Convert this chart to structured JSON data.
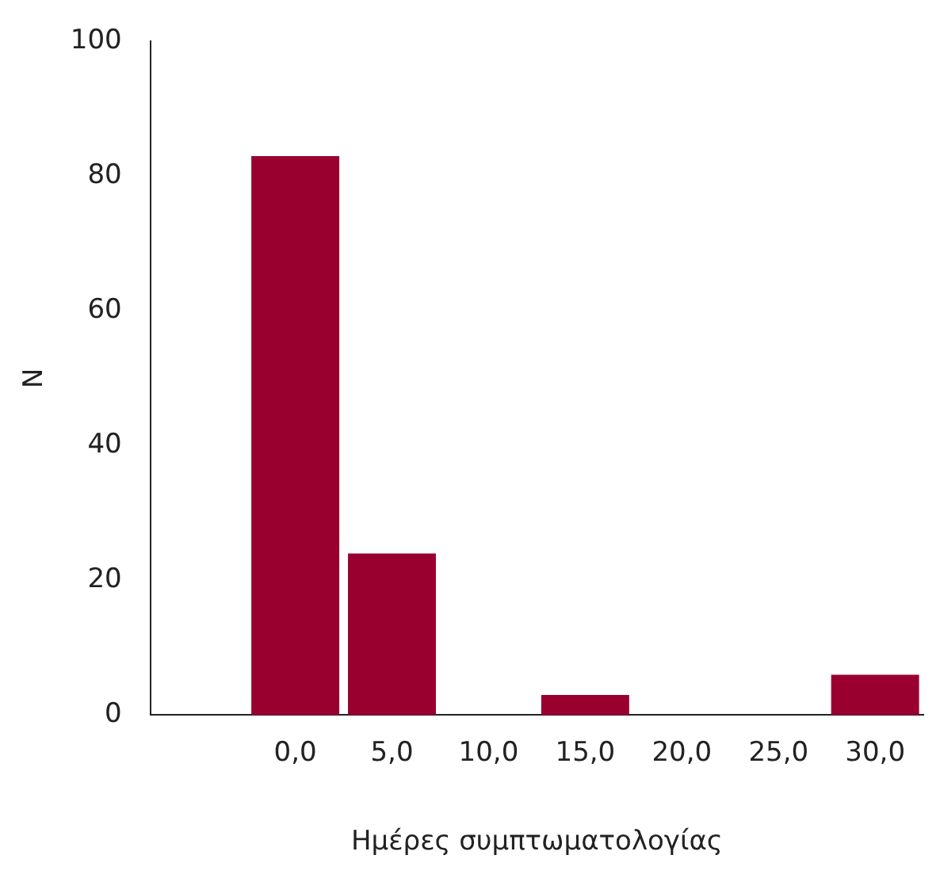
{
  "chart_data": {
    "type": "bar",
    "categories": [
      null,
      "0,0",
      "5,0",
      "10,0",
      "15,0",
      "20,0",
      "25,0",
      "30,0"
    ],
    "values": [
      null,
      83,
      24,
      0,
      3,
      0,
      0,
      6
    ],
    "color": "#990030",
    "ylim": [
      0,
      100
    ],
    "yticks": [
      0,
      20,
      40,
      60,
      80,
      100
    ],
    "grid": false,
    "legend": false,
    "xlabel": "Ημέρες συμπτωματολογίας",
    "ylabel": "N"
  }
}
